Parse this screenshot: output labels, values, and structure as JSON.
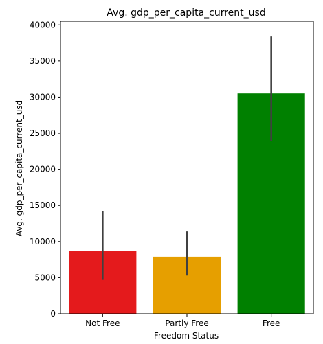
{
  "chart_data": {
    "type": "bar",
    "title": "Avg. gdp_per_capita_current_usd",
    "xlabel": "Freedom Status",
    "ylabel": "Avg. gdp_per_capita_current_usd",
    "categories": [
      "Not Free",
      "Partly Free",
      "Free"
    ],
    "values": [
      8700,
      7900,
      30500
    ],
    "error_low": [
      4700,
      5300,
      23900
    ],
    "error_high": [
      14200,
      11400,
      38400
    ],
    "colors": [
      "#e41a1c",
      "#e69f00",
      "#008000"
    ],
    "error_color": "#404040",
    "ylim": [
      0,
      40500
    ],
    "yticks": [
      0,
      5000,
      10000,
      15000,
      20000,
      25000,
      30000,
      35000,
      40000
    ],
    "grid": false
  }
}
